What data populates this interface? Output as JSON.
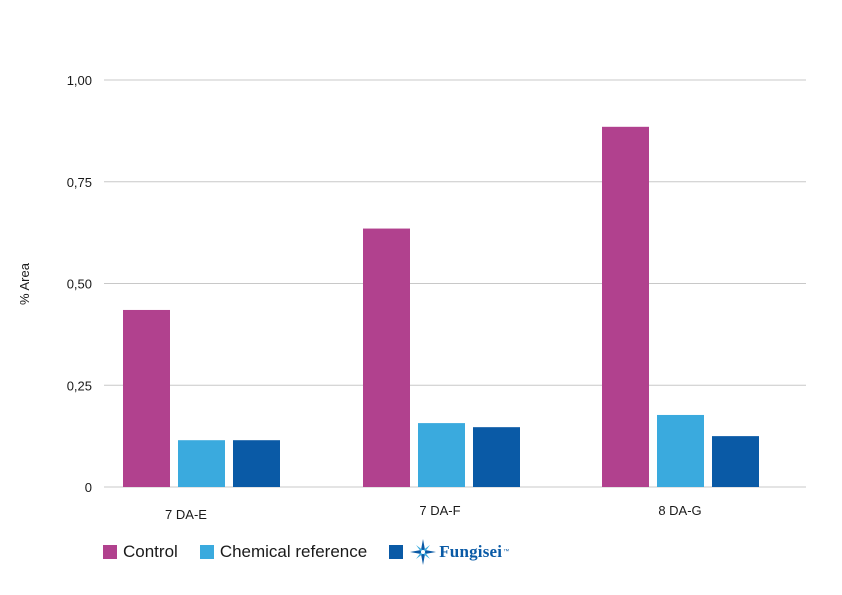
{
  "chart_data": {
    "type": "bar",
    "categories": [
      "7 DA-E",
      "7 DA-F",
      "8 DA-G"
    ],
    "series": [
      {
        "name": "Control",
        "color": "#b1418e",
        "values": [
          0.435,
          0.635,
          0.885
        ]
      },
      {
        "name": "Chemical reference",
        "color": "#3aaade",
        "values": [
          0.115,
          0.157,
          0.177
        ]
      },
      {
        "name": "Fungisei",
        "color": "#0a5aa6",
        "values": [
          0.115,
          0.147,
          0.125
        ]
      }
    ],
    "ylabel": "% Area",
    "ylim": [
      0,
      1
    ],
    "yticks": [
      0,
      0.25,
      0.5,
      0.75,
      1
    ],
    "ytick_labels": [
      "0",
      "0,25",
      "0,50",
      "0,75",
      "1,00"
    ],
    "grid": true,
    "legend_position": "bottom-left"
  },
  "legend": {
    "control_label": "Control",
    "chemical_label": "Chemical reference",
    "fungisei_logo_text": "Fungisei",
    "fungisei_tm": "™"
  },
  "colors": {
    "control": "#b1418e",
    "chemical_reference": "#3aaade",
    "fungisei": "#0a5aa6",
    "grid": "#c8c8c8"
  }
}
